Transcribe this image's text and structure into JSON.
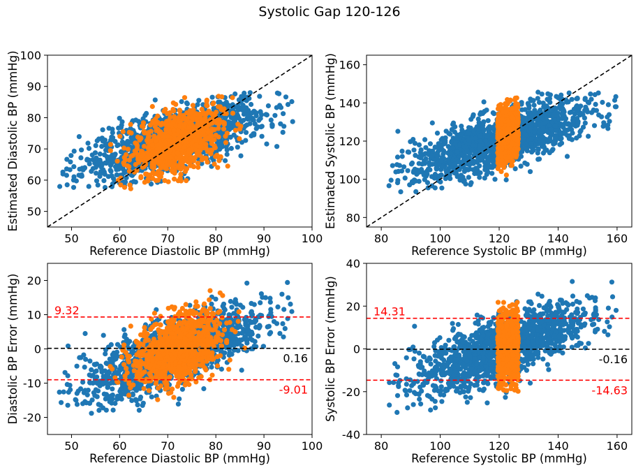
{
  "figure": {
    "title": "Systolic Gap 120-126"
  },
  "colors": {
    "blue": "#1f77b4",
    "orange": "#ff7f0e",
    "red": "#ff0000",
    "black": "#000000"
  },
  "chart_data": [
    {
      "type": "scatter",
      "xlabel": "Reference Diastolic BP (mmHg)",
      "ylabel": "Estimated Diastolic BP (mmHg)",
      "xlim": [
        45,
        100
      ],
      "ylim": [
        45,
        100
      ],
      "xticks": [
        50,
        60,
        70,
        80,
        90,
        100
      ],
      "yticks": [
        50,
        60,
        70,
        80,
        90,
        100
      ],
      "reference_line": {
        "kind": "identity",
        "style": "dashed",
        "color": "black"
      },
      "series": [
        {
          "color": "blue",
          "x_range": [
            47,
            96
          ],
          "slope": 0.45,
          "intercept": 40.6,
          "spread": 4.5,
          "y_range": [
            57,
            88
          ]
        },
        {
          "color": "orange",
          "x_range": [
            57,
            87
          ],
          "slope": 0.5,
          "intercept": 36,
          "spread": 5,
          "y_range": [
            57,
            88
          ]
        }
      ]
    },
    {
      "type": "scatter",
      "xlabel": "Reference Systolic BP (mmHg)",
      "ylabel": "Estimated Systolic BP (mmHg)",
      "xlim": [
        75,
        165
      ],
      "ylim": [
        75,
        165
      ],
      "xticks": [
        80,
        100,
        120,
        140,
        160
      ],
      "yticks": [
        80,
        100,
        120,
        140,
        160
      ],
      "reference_line": {
        "kind": "identity",
        "style": "dashed",
        "color": "black"
      },
      "series": [
        {
          "color": "blue",
          "x_range": [
            82,
            160
          ],
          "slope": 0.5,
          "intercept": 60,
          "spread": 7,
          "y_range": [
            93,
            146
          ]
        },
        {
          "color": "orange",
          "x_range": [
            119.5,
            126.5
          ],
          "slope": 0.5,
          "intercept": 62,
          "spread": 7,
          "y_range": [
            102,
            145
          ]
        }
      ]
    },
    {
      "type": "scatter",
      "xlabel": "Reference Diastolic BP (mmHg)",
      "ylabel": "Diastolic BP Error (mmHg)",
      "xlim": [
        45,
        100
      ],
      "ylim": [
        -25,
        25
      ],
      "xticks": [
        50,
        60,
        70,
        80,
        90,
        100
      ],
      "yticks": [
        -20,
        -10,
        0,
        10,
        20
      ],
      "hlines": [
        {
          "y": 9.32,
          "label": "9.32",
          "color": "red",
          "label_pos": "left-above"
        },
        {
          "y": 0.16,
          "label": "0.16",
          "color": "black",
          "label_pos": "right-below"
        },
        {
          "y": -9.01,
          "label": "-9.01",
          "color": "red",
          "label_pos": "right-below"
        }
      ],
      "series": [
        {
          "color": "blue",
          "x_range": [
            47,
            96
          ],
          "slope": 0.55,
          "intercept": -40.6,
          "spread": 4.5,
          "y_range": [
            -19,
            20
          ]
        },
        {
          "color": "orange",
          "x_range": [
            57,
            87
          ],
          "slope": 0.5,
          "intercept": -36,
          "spread": 5,
          "y_range": [
            -16,
            18
          ]
        }
      ]
    },
    {
      "type": "scatter",
      "xlabel": "Reference Systolic BP (mmHg)",
      "ylabel": "Systolic BP Error (mmHg)",
      "xlim": [
        75,
        165
      ],
      "ylim": [
        -40,
        40
      ],
      "xticks": [
        80,
        100,
        120,
        140,
        160
      ],
      "yticks": [
        -40,
        -20,
        0,
        20,
        40
      ],
      "hlines": [
        {
          "y": 14.31,
          "label": "14.31",
          "color": "red",
          "label_pos": "left-above"
        },
        {
          "y": -0.16,
          "label": "-0.16",
          "color": "black",
          "label_pos": "right-below"
        },
        {
          "y": -14.63,
          "label": "-14.63",
          "color": "red",
          "label_pos": "right-below"
        }
      ],
      "series": [
        {
          "color": "blue",
          "x_range": [
            82,
            160
          ],
          "slope": 0.5,
          "intercept": -60,
          "spread": 7,
          "y_range": [
            -31,
            37
          ]
        },
        {
          "color": "orange",
          "x_range": [
            119.5,
            126.5
          ],
          "slope": 0.0,
          "intercept": 0,
          "spread": 8,
          "y_range": [
            -20,
            22
          ]
        }
      ]
    }
  ]
}
